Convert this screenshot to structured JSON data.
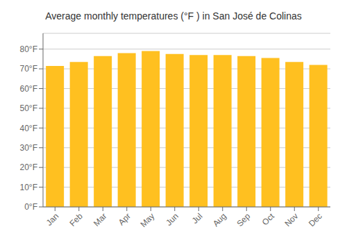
{
  "chart_data": {
    "type": "bar",
    "title": "Average monthly temperatures (°F ) in San José de Colinas",
    "categories": [
      "Jan",
      "Feb",
      "Mar",
      "Apr",
      "May",
      "Jun",
      "Jul",
      "Aug",
      "Sep",
      "Oct",
      "Nov",
      "Dec"
    ],
    "values": [
      71.5,
      73.5,
      76.5,
      78.0,
      79.0,
      77.5,
      77.0,
      77.0,
      76.5,
      75.5,
      73.5,
      72.0
    ],
    "color": "#FFC020",
    "ylim": [
      0,
      88
    ],
    "yticks": [
      {
        "value": 0,
        "label": "0°F"
      },
      {
        "value": 10,
        "label": "10°F"
      },
      {
        "value": 20,
        "label": "20°F"
      },
      {
        "value": 30,
        "label": "30°F"
      },
      {
        "value": 40,
        "label": "40°F"
      },
      {
        "value": 50,
        "label": "50°F"
      },
      {
        "value": 60,
        "label": "60°F"
      },
      {
        "value": 70,
        "label": "70°F"
      },
      {
        "value": 80,
        "label": "80°F"
      }
    ],
    "grid": true
  }
}
